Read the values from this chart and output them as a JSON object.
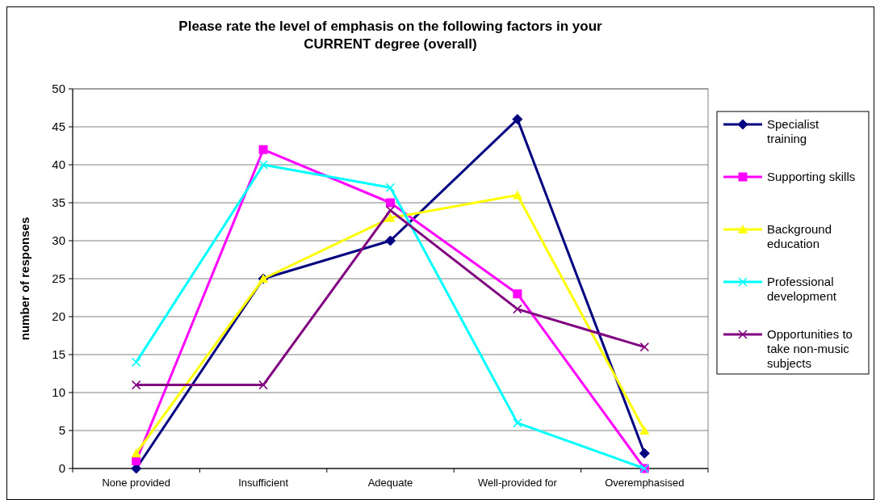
{
  "chart_data": {
    "type": "line",
    "title": "Please rate the level of emphasis on the following factors in your CURRENT degree (overall)",
    "ylabel": "number of responses",
    "categories": [
      "None provided",
      "Insufficient",
      "Adequate",
      "Well-provided for",
      "Overemphasised"
    ],
    "series": [
      {
        "name": "Specialist training",
        "color": "#000080",
        "marker": "diamond",
        "values": [
          0,
          25,
          30,
          46,
          2
        ]
      },
      {
        "name": "Supporting skills",
        "color": "#ff00ff",
        "marker": "square",
        "values": [
          1,
          42,
          35,
          23,
          0
        ]
      },
      {
        "name": "Background education",
        "color": "#ffff00",
        "marker": "triangle",
        "values": [
          2,
          25,
          33,
          36,
          5
        ]
      },
      {
        "name": "Professional development",
        "color": "#00ffff",
        "marker": "cross",
        "values": [
          14,
          40,
          37,
          6,
          0
        ]
      },
      {
        "name": "Opportunities to take non-music subjects",
        "color": "#800080",
        "marker": "cross",
        "values": [
          11,
          11,
          34,
          21,
          16
        ]
      }
    ],
    "ylim": [
      0,
      50
    ],
    "yticks": [
      0,
      5,
      10,
      15,
      20,
      25,
      30,
      35,
      40,
      45,
      50
    ],
    "grid": "y",
    "legend": "right"
  }
}
